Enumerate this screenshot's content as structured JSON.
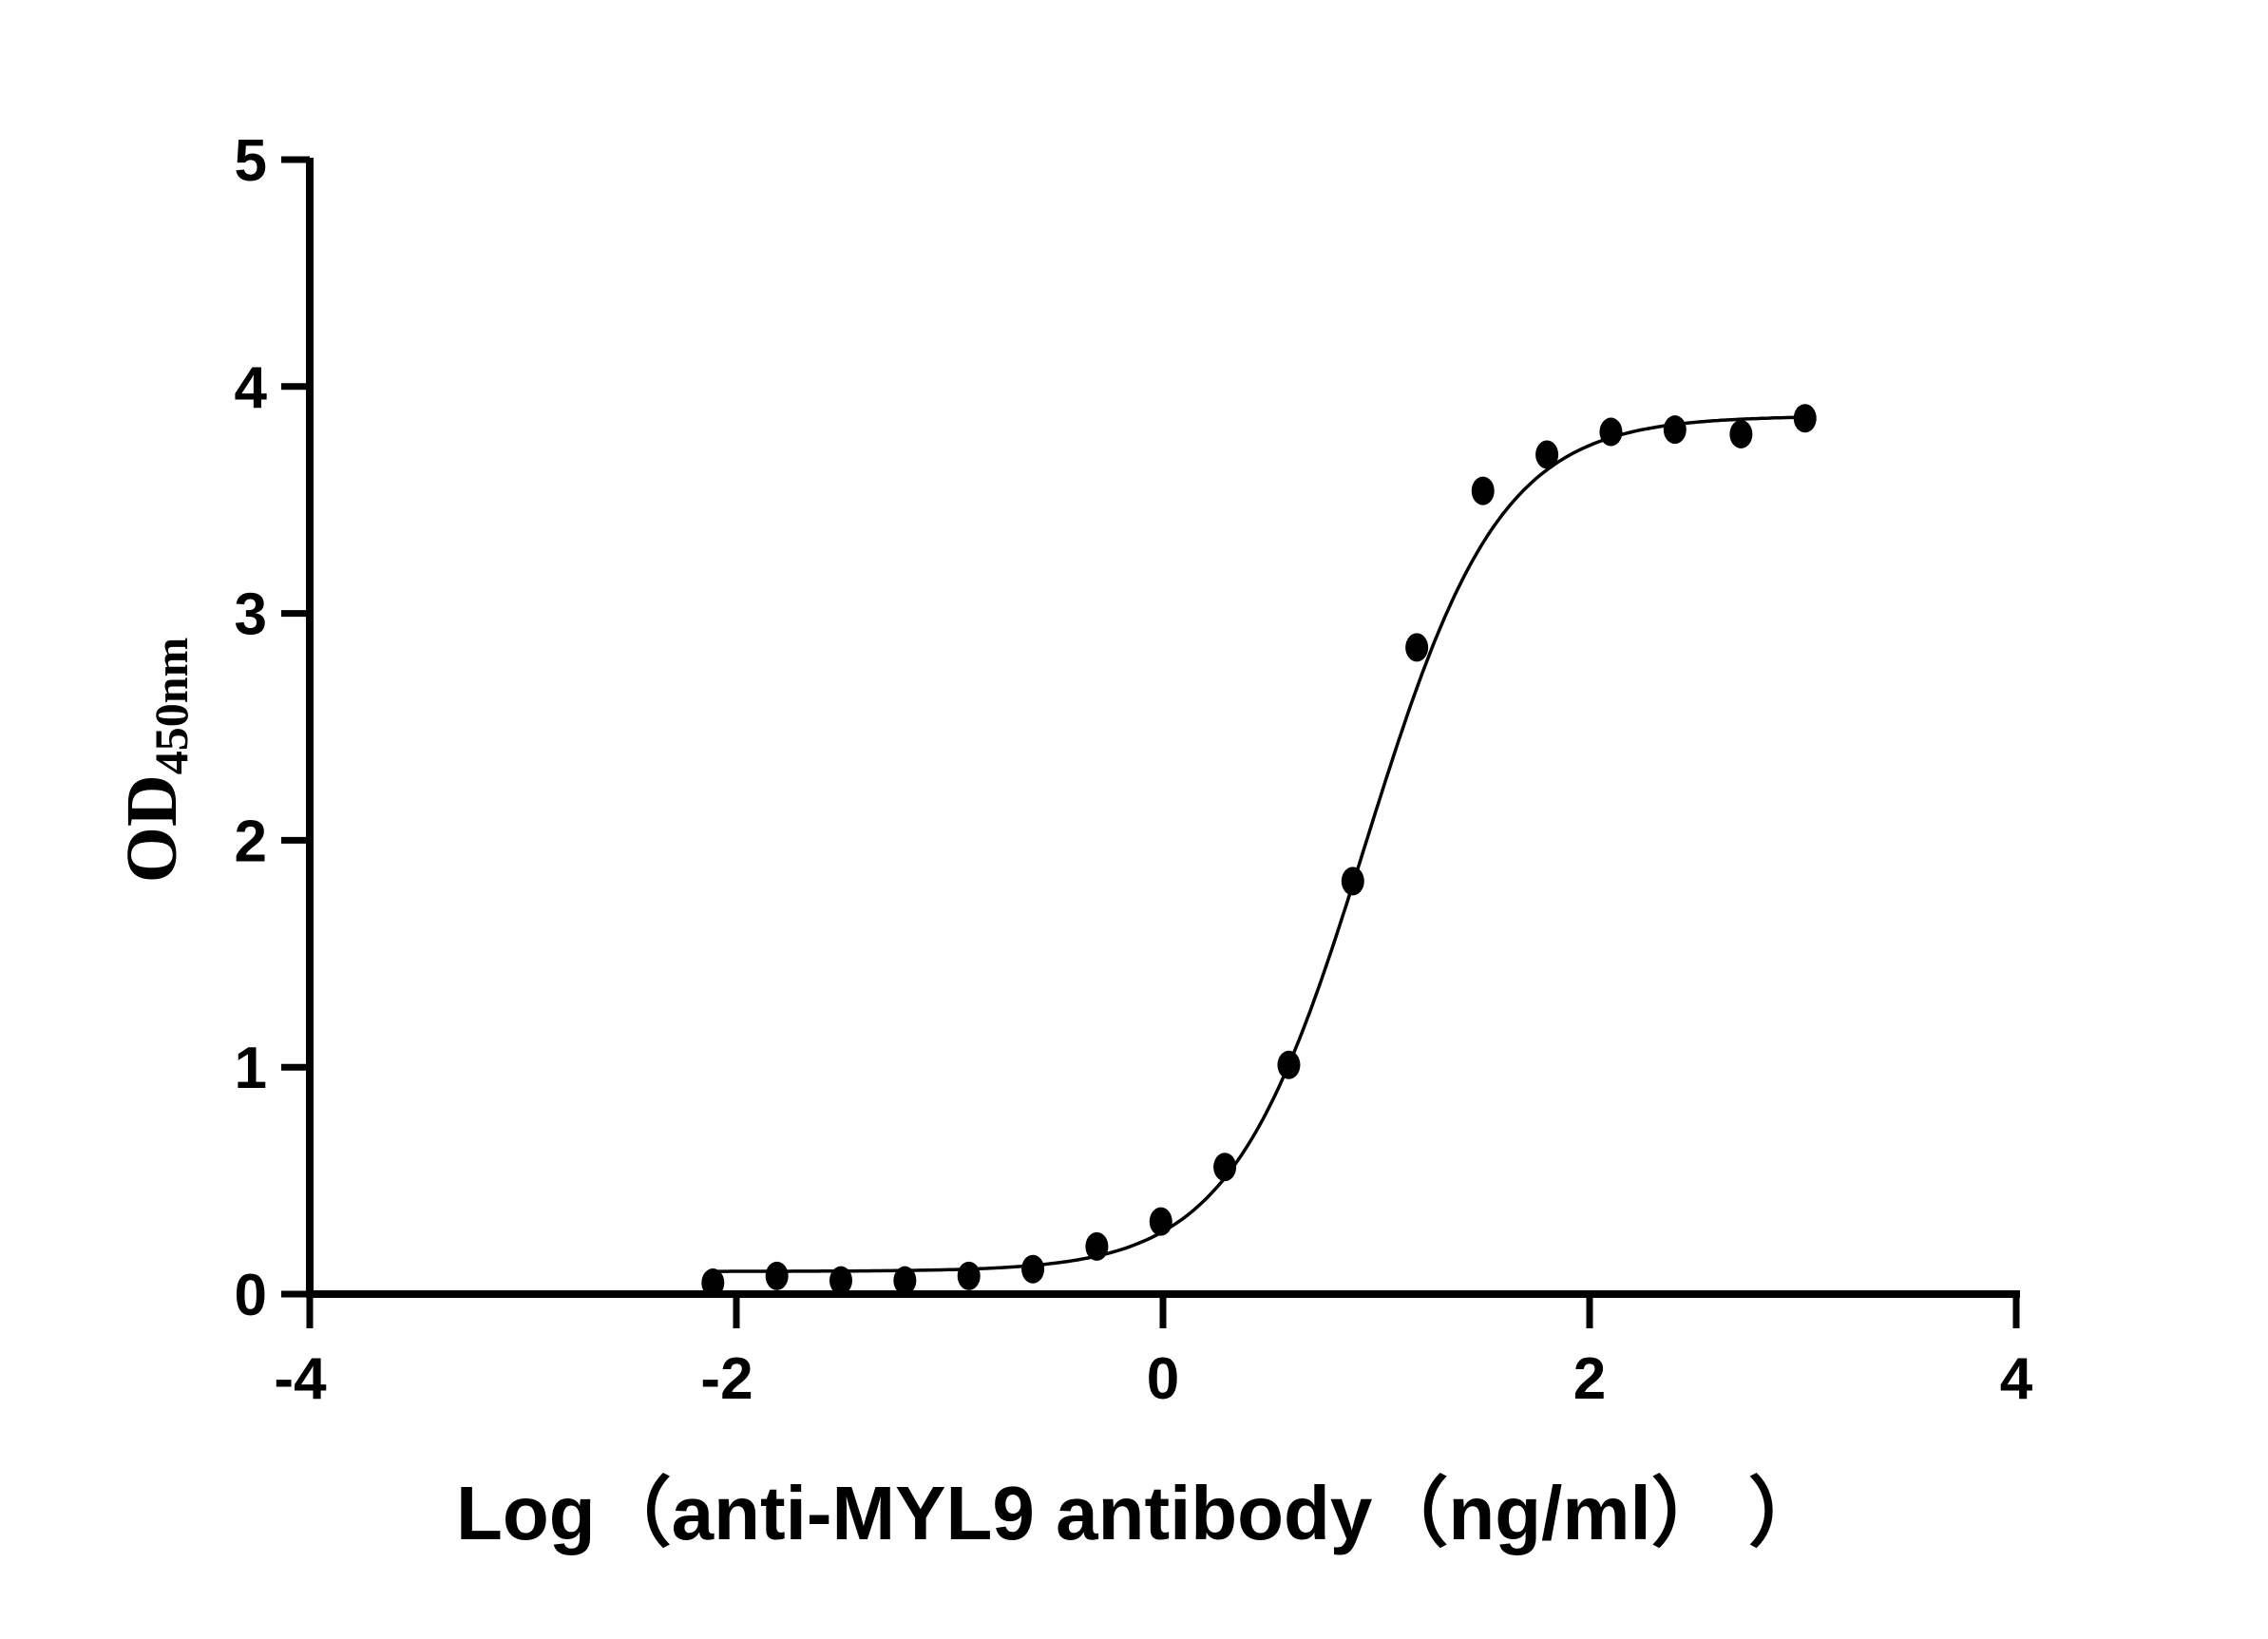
{
  "chart_data": {
    "type": "scatter",
    "title": "",
    "xlabel": "Log（anti-MYL9 antibody（ng/ml）  ）",
    "ylabel": "OD",
    "ylabel_subscript": "450nm",
    "xlim": [
      -4,
      4
    ],
    "ylim": [
      0,
      5
    ],
    "xticks": [
      -4,
      -2,
      0,
      2,
      4
    ],
    "yticks": [
      0,
      1,
      2,
      3,
      4,
      5
    ],
    "xtick_labels": [
      "-4",
      "-2",
      "0",
      "2",
      "4"
    ],
    "ytick_labels": [
      "0",
      "1",
      "2",
      "3",
      "4",
      "5"
    ],
    "grid": false,
    "fit": "sigmoidal four-parameter logistic curve",
    "points": [
      {
        "x": -2.11,
        "y": 0.05
      },
      {
        "x": -1.81,
        "y": 0.08
      },
      {
        "x": -1.51,
        "y": 0.06
      },
      {
        "x": -1.21,
        "y": 0.06
      },
      {
        "x": -0.91,
        "y": 0.08
      },
      {
        "x": -0.61,
        "y": 0.11
      },
      {
        "x": -0.31,
        "y": 0.21
      },
      {
        "x": -0.01,
        "y": 0.32
      },
      {
        "x": 0.29,
        "y": 0.56
      },
      {
        "x": 0.59,
        "y": 1.01
      },
      {
        "x": 0.89,
        "y": 1.82
      },
      {
        "x": 1.19,
        "y": 2.85
      },
      {
        "x": 1.5,
        "y": 3.54
      },
      {
        "x": 1.8,
        "y": 3.7
      },
      {
        "x": 2.1,
        "y": 3.8
      },
      {
        "x": 2.4,
        "y": 3.81
      },
      {
        "x": 2.71,
        "y": 3.79
      },
      {
        "x": 3.01,
        "y": 3.86
      }
    ],
    "color": "#000000"
  }
}
